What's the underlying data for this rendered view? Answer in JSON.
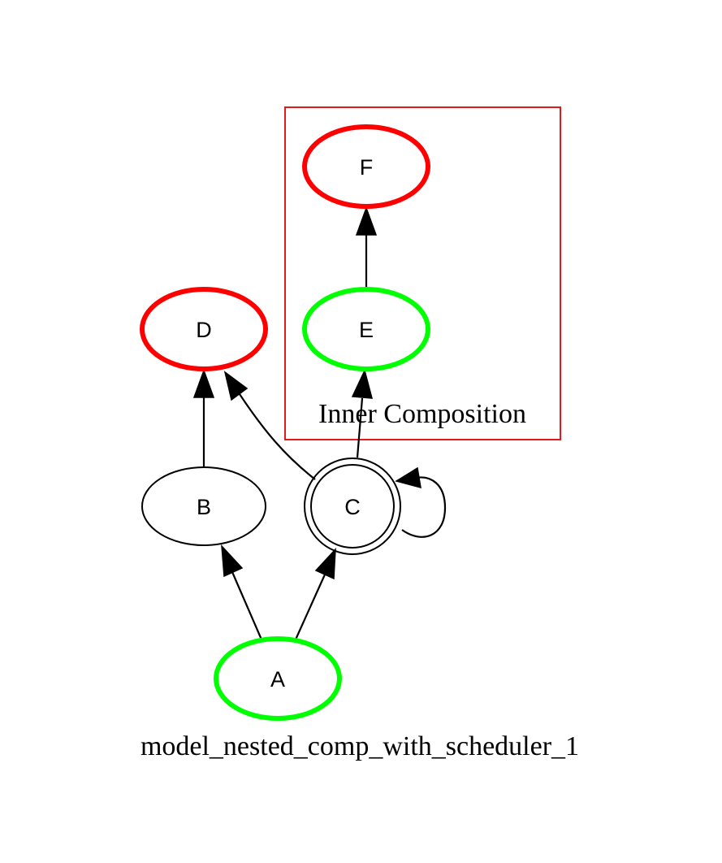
{
  "graph_title": "model_nested_comp_with_scheduler_1",
  "cluster": {
    "label": "Inner Composition",
    "border_color": "#e31a1c"
  },
  "colors": {
    "origin": "#00ff00",
    "terminal": "#ff0000",
    "default": "#000000"
  },
  "nodes": [
    {
      "id": "A",
      "label": "A",
      "role": "origin"
    },
    {
      "id": "B",
      "label": "B",
      "role": "default"
    },
    {
      "id": "C",
      "label": "C",
      "role": "default",
      "shape": "doublecircle"
    },
    {
      "id": "D",
      "label": "D",
      "role": "terminal"
    },
    {
      "id": "E",
      "label": "E",
      "role": "origin"
    },
    {
      "id": "F",
      "label": "F",
      "role": "terminal"
    }
  ],
  "edges": [
    {
      "from": "A",
      "to": "B"
    },
    {
      "from": "A",
      "to": "C"
    },
    {
      "from": "B",
      "to": "D"
    },
    {
      "from": "C",
      "to": "D"
    },
    {
      "from": "C",
      "to": "E"
    },
    {
      "from": "E",
      "to": "F"
    },
    {
      "from": "C",
      "to": "C"
    }
  ]
}
